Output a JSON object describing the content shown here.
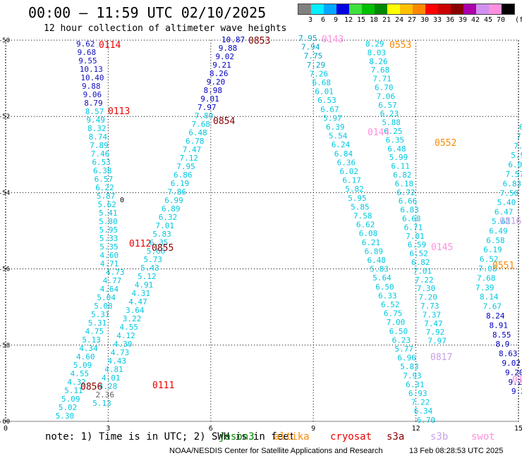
{
  "header": {
    "title": "00:00 – 11:59 UTC 02/10/2025",
    "subtitle": "12 hour collection of altimeter wave heights"
  },
  "legend": {
    "unit": "(ft)",
    "stops": [
      {
        "label": "3",
        "color": "#808080"
      },
      {
        "label": "6",
        "color": "#00f0ff"
      },
      {
        "label": "9",
        "color": "#00a8ff"
      },
      {
        "label": "12",
        "color": "#0000e0"
      },
      {
        "label": "15",
        "color": "#40e040"
      },
      {
        "label": "18",
        "color": "#00c000"
      },
      {
        "label": "21",
        "color": "#008800"
      },
      {
        "label": "24",
        "color": "#ffff00"
      },
      {
        "label": "27",
        "color": "#ffc000"
      },
      {
        "label": "30",
        "color": "#ff8800"
      },
      {
        "label": "33",
        "color": "#ff0000"
      },
      {
        "label": "36",
        "color": "#cc0000"
      },
      {
        "label": "39",
        "color": "#880000"
      },
      {
        "label": "42",
        "color": "#aa00aa"
      },
      {
        "label": "45",
        "color": "#d090f0"
      },
      {
        "label": "70",
        "color": "#ff90e0"
      },
      {
        "label": "",
        "color": "#000000"
      }
    ]
  },
  "axes": {
    "x_ticks": [
      "0",
      "3",
      "6",
      "9",
      "12",
      "15"
    ],
    "y_ticks": [
      "-50",
      "-52",
      "-54",
      "-56",
      "-58",
      "-60"
    ]
  },
  "pass_labels": [
    {
      "text": "0114",
      "color": "#ee0000"
    },
    {
      "text": "0853",
      "color": "#880000"
    },
    {
      "text": "0143",
      "color": "#ff90e0"
    },
    {
      "text": "0553",
      "color": "#ff8800"
    },
    {
      "text": "0113",
      "color": "#ee0000"
    },
    {
      "text": "0854",
      "color": "#880000"
    },
    {
      "text": "0144",
      "color": "#ff90e0"
    },
    {
      "text": "0552",
      "color": "#ff8800"
    },
    {
      "text": "0112",
      "color": "#ee0000"
    },
    {
      "text": "0855",
      "color": "#880000"
    },
    {
      "text": "0145",
      "color": "#ff90e0"
    },
    {
      "text": "0551",
      "color": "#ff8800"
    },
    {
      "text": "0816",
      "color": "#c8a0e8"
    },
    {
      "text": "0817",
      "color": "#c8a0e8"
    },
    {
      "text": "0856",
      "color": "#880000"
    },
    {
      "text": "0111",
      "color": "#ee0000"
    },
    {
      "text": "011",
      "color": "#ff90e0"
    }
  ],
  "wave_heights": {
    "track_0114": [
      "9.62",
      "9.68",
      "9.55",
      "10.13",
      "10.40",
      "9.88",
      "9.06",
      "8.79",
      "8.57",
      "9.49",
      "8.32",
      "8.74",
      "7.89",
      "7.46",
      "6.53",
      "6.38",
      "6.57",
      "6.22",
      "5.87",
      "5.62",
      "5.41",
      "5.80",
      "5.95",
      "5.33",
      "5.35",
      "4.60",
      "4.71",
      "4.73",
      "4.77",
      "4.64",
      "5.04",
      "5.08",
      "5.31",
      "5.31",
      "4.75",
      "5.13",
      "4.34",
      "4.60",
      "5.09",
      "4.55",
      "4.32",
      "5.11",
      "5.09",
      "5.02",
      "5.30"
    ],
    "track_0853": [
      "10.87",
      "9.88",
      "9.02",
      "9.21",
      "8.26",
      "9.20",
      "8.98",
      "9.01",
      "7.97",
      "7.89",
      "7.68",
      "6.48",
      "6.78",
      "7.47",
      "7.12",
      "7.95",
      "6.86",
      "6.19",
      "7.86",
      "6.99",
      "6.89",
      "6.32",
      "7.01",
      "5.83",
      "6.35",
      "5.66",
      "5.73",
      "5.43",
      "5.12",
      "4.91",
      "4.31",
      "4.47",
      "3.64",
      "3.22",
      "4.55",
      "4.12",
      "4.30",
      "4.73",
      "4.43",
      "4.81",
      "4.01",
      "4.28",
      "2.36",
      "5.13"
    ],
    "track_0143": [
      "7.95",
      "7.94",
      "7.75",
      "7.29",
      "7.26",
      "6.68",
      "6.01",
      "6.53",
      "6.67",
      "5.97",
      "6.39",
      "5.54",
      "6.24",
      "6.84",
      "6.36",
      "6.02",
      "6.17",
      "5.82",
      "5.95",
      "5.85",
      "7.58",
      "6.62",
      "6.08",
      "6.21",
      "6.89",
      "6.48",
      "5.83",
      "5.64",
      "6.50",
      "6.33",
      "6.52",
      "6.75",
      "7.00",
      "6.50",
      "6.23",
      "5.77",
      "6.96",
      "5.83",
      "7.93",
      "6.31",
      "6.93",
      "7.22",
      "6.34",
      "6.70"
    ],
    "track_0553": [
      "8.29",
      "8.03",
      "8.26",
      "7.68",
      "7.71",
      "6.70",
      "7.06",
      "6.57",
      "6.23",
      "5.88",
      "6.25",
      "6.35",
      "6.48",
      "5.99",
      "6.11",
      "6.82",
      "6.18",
      "6.72",
      "6.66",
      "6.83",
      "6.68",
      "6.71",
      "7.01",
      "6.59",
      "6.52",
      "6.82",
      "7.01",
      "7.22",
      "7.30",
      "7.20",
      "7.73",
      "7.37",
      "7.47",
      "7.92",
      "7.97"
    ],
    "track_0816": [
      "6.8",
      "7.3",
      "7.3",
      "5.9",
      "6.05",
      "7.57",
      "6.83",
      "7.50",
      "5.40",
      "6.47",
      "5.62",
      "6.49",
      "6.58",
      "6.19",
      "6.52",
      "7.08",
      "7.68",
      "7.39",
      "8.14",
      "7.67",
      "8.24",
      "8.91",
      "8.55",
      "8.9",
      "8.63",
      "9.02",
      "9.20",
      "9.22",
      "9.2"
    ],
    "extra_marker": "0"
  },
  "footer": {
    "note": "note: 1) Time is in UTC; 2) SWH is in feet",
    "satellites": [
      {
        "name": "jason3",
        "color": "#008800"
      },
      {
        "name": "altika",
        "color": "#ff8800"
      },
      {
        "name": "cryosat",
        "color": "#ee0000"
      },
      {
        "name": "s3a",
        "color": "#880000"
      },
      {
        "name": "s3b",
        "color": "#c8a0e8"
      },
      {
        "name": "swot",
        "color": "#ff90e0"
      }
    ],
    "credit": "NOAA/NESDIS Center for Satellite Applications and Research",
    "generated": "13 Feb 08:28:53 UTC 2025"
  }
}
